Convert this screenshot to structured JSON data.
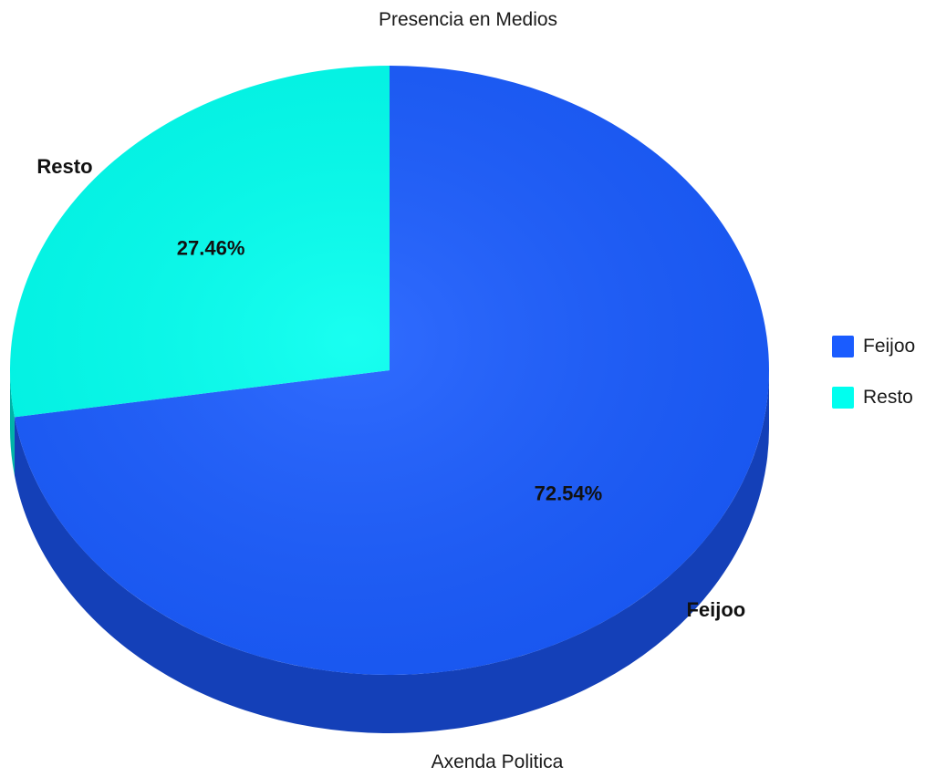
{
  "chart_data": {
    "type": "pie",
    "title": "Presencia en Medios",
    "subtitle": "Axenda Politica",
    "slices": [
      {
        "label": "Feijoo",
        "value": 72.54,
        "value_label": "72.54%",
        "color": "#1a5cff",
        "side_color": "#1440b8"
      },
      {
        "label": "Resto",
        "value": 27.46,
        "value_label": "27.46%",
        "color": "#00ffef",
        "side_color": "#00b3a8"
      }
    ],
    "legend_position": "right",
    "style": "3d"
  }
}
